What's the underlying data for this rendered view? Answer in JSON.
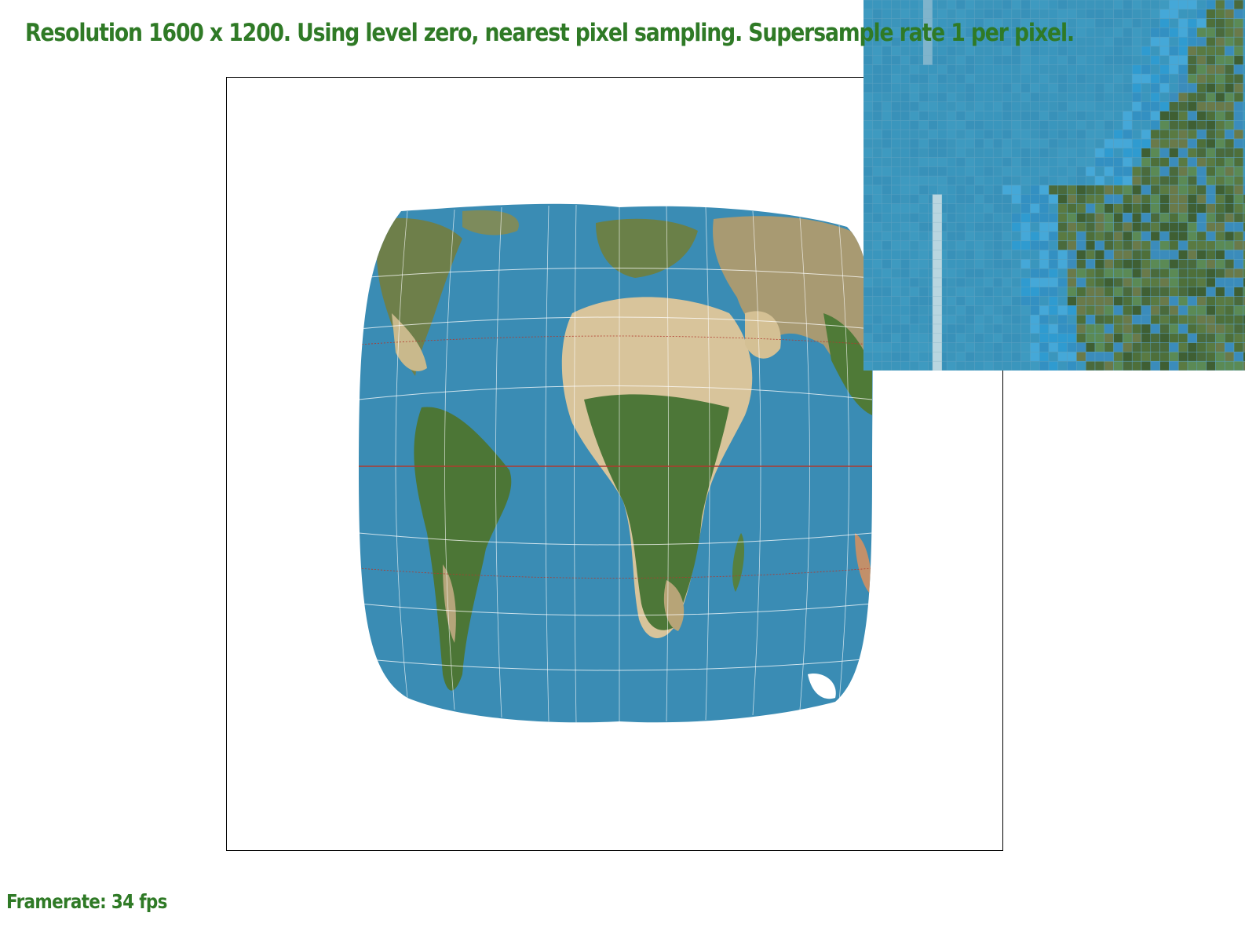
{
  "status": {
    "title": "Resolution 1600 x 1200. Using level zero, nearest pixel sampling. Supersample rate 1 per pixel.",
    "framerate": "Framerate: 34 fps"
  },
  "colors": {
    "text": "#2f7a26",
    "ocean": "#3a8cb4",
    "land_green": "#4f7a37",
    "land_desert": "#d9c7a0",
    "grid": "#ffffff",
    "equator": "#b03a2e"
  }
}
